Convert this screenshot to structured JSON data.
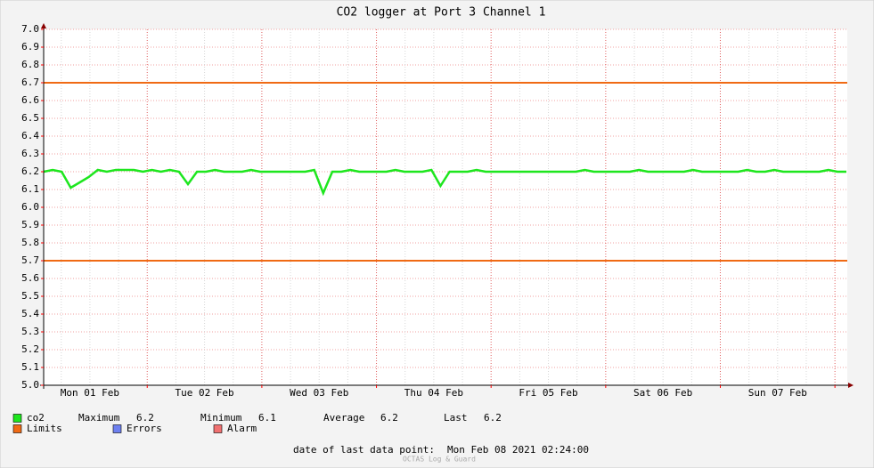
{
  "chart_data": {
    "type": "line",
    "title": "CO2 logger at Port 3 Channel 1",
    "x_labels": [
      "Mon 01 Feb",
      "Tue 02 Feb",
      "Wed 03 Feb",
      "Thu 04 Feb",
      "Fri 05 Feb",
      "Sat 06 Feb",
      "Sun 07 Feb"
    ],
    "ylim": [
      5.0,
      7.0
    ],
    "yticks": [
      {
        "value": 5.0,
        "label": "5.0"
      },
      {
        "value": 5.1,
        "label": "5.1"
      },
      {
        "value": 5.2,
        "label": "5.2"
      },
      {
        "value": 5.3,
        "label": "5.3"
      },
      {
        "value": 5.4,
        "label": "5.4"
      },
      {
        "value": 5.5,
        "label": "5.5"
      },
      {
        "value": 5.6,
        "label": "5.6"
      },
      {
        "value": 5.7,
        "label": "5.7"
      },
      {
        "value": 5.8,
        "label": "5.8"
      },
      {
        "value": 5.9,
        "label": "5.9"
      },
      {
        "value": 6.0,
        "label": "6.0"
      },
      {
        "value": 6.1,
        "label": "6.1"
      },
      {
        "value": 6.2,
        "label": "6.2"
      },
      {
        "value": 6.3,
        "label": "6.3"
      },
      {
        "value": 6.4,
        "label": "6.4"
      },
      {
        "value": 6.5,
        "label": "6.5"
      },
      {
        "value": 6.6,
        "label": "6.6"
      },
      {
        "value": 6.7,
        "label": "6.7"
      },
      {
        "value": 6.8,
        "label": "6.8"
      },
      {
        "value": 6.9,
        "label": "6.9"
      },
      {
        "value": 7.0,
        "label": "7.0"
      }
    ],
    "grid": true,
    "series": [
      {
        "name": "co2",
        "color": "#1ee61e",
        "values": [
          6.2,
          6.21,
          6.2,
          6.11,
          6.14,
          6.17,
          6.21,
          6.2,
          6.21,
          6.21,
          6.21,
          6.2,
          6.21,
          6.2,
          6.21,
          6.2,
          6.13,
          6.2,
          6.2,
          6.21,
          6.2,
          6.2,
          6.2,
          6.21,
          6.2,
          6.2,
          6.2,
          6.2,
          6.2,
          6.2,
          6.21,
          6.08,
          6.2,
          6.2,
          6.21,
          6.2,
          6.2,
          6.2,
          6.2,
          6.21,
          6.2,
          6.2,
          6.2,
          6.21,
          6.12,
          6.2,
          6.2,
          6.2,
          6.21,
          6.2,
          6.2,
          6.2,
          6.2,
          6.2,
          6.2,
          6.2,
          6.2,
          6.2,
          6.2,
          6.2,
          6.21,
          6.2,
          6.2,
          6.2,
          6.2,
          6.2,
          6.21,
          6.2,
          6.2,
          6.2,
          6.2,
          6.2,
          6.21,
          6.2,
          6.2,
          6.2,
          6.2,
          6.2,
          6.21,
          6.2,
          6.2,
          6.21,
          6.2,
          6.2,
          6.2,
          6.2,
          6.2,
          6.21,
          6.2,
          6.2
        ]
      }
    ],
    "limits": {
      "name": "Limits",
      "color": "#f06a14",
      "values": [
        6.7,
        5.7
      ]
    },
    "stats": [
      {
        "label": "Maximum",
        "value": 6.2
      },
      {
        "label": "Minimum",
        "value": 6.1
      },
      {
        "label": "Average",
        "value": 6.2
      },
      {
        "label": "Last",
        "value": 6.2
      }
    ],
    "other_legend": [
      {
        "name": "Errors",
        "color": "#6e80f0"
      },
      {
        "name": "Alarm",
        "color": "#f07070"
      }
    ],
    "footer": {
      "label": "date of last data point:",
      "value": "Mon Feb 08 2021 02:24:00"
    },
    "watermark": "OCTAS Log & Guard"
  }
}
